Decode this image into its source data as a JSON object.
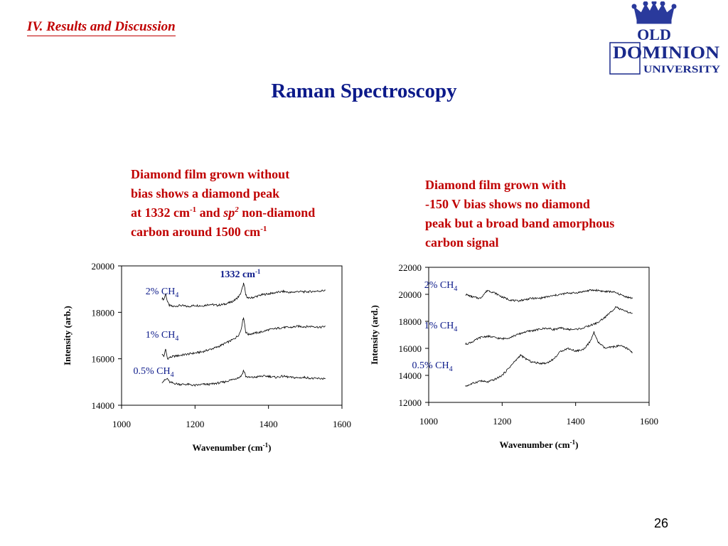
{
  "header": {
    "section": "IV. Results and Discussion",
    "title": "Raman Spectroscopy",
    "logo": {
      "line1": "OLD",
      "line2": "DOMINION",
      "line3": "UNIVERSITY",
      "color": "#1a2a8c"
    },
    "page_number": "26"
  },
  "left": {
    "caption": {
      "line1": "Diamond film grown without",
      "line2": "bias shows a diamond peak",
      "line3_a": "at 1332 cm",
      "line3_sup": "-1",
      "line3_b": " and ",
      "line3_i": "sp",
      "line3_isup": "2",
      "line3_c": " non-diamond",
      "line4": "carbon around 1500 cm",
      "line4_sup": "-1"
    }
  },
  "right": {
    "caption": {
      "line1": "Diamond film grown with",
      "line2": "-150 V bias shows no diamond",
      "line3": "peak but a broad band amorphous",
      "line4": "carbon signal"
    }
  },
  "chart_data": [
    {
      "type": "line",
      "xlabel": "Wavenumber (cm",
      "xlabel_sup": "-1",
      "xlabel_end": ")",
      "ylabel": "Intensity (arb.)",
      "xlim": [
        1000,
        1600
      ],
      "ylim": [
        14000,
        20000
      ],
      "xticks": [
        "1000",
        "1200",
        "1400",
        "1600"
      ],
      "yticks": [
        "14000",
        "16000",
        "18000",
        "20000"
      ],
      "annotation": {
        "text": "1332 cm",
        "sup": "-1"
      },
      "series": [
        {
          "name": "2% CH",
          "sub": "4",
          "x": [
            1110,
            1115,
            1120,
            1125,
            1130,
            1140,
            1160,
            1180,
            1200,
            1220,
            1240,
            1260,
            1280,
            1300,
            1310,
            1320,
            1325,
            1330,
            1332,
            1335,
            1338,
            1345,
            1360,
            1380,
            1400,
            1420,
            1440,
            1460,
            1480,
            1500,
            1520,
            1540,
            1555
          ],
          "y": [
            18600,
            18550,
            18800,
            18450,
            18300,
            18250,
            18300,
            18250,
            18300,
            18280,
            18350,
            18300,
            18350,
            18450,
            18550,
            18700,
            18850,
            19100,
            19250,
            19050,
            18750,
            18600,
            18650,
            18750,
            18800,
            18850,
            18900,
            18850,
            18900,
            18880,
            18900,
            18920,
            18950
          ]
        },
        {
          "name": "1% CH",
          "sub": "4",
          "x": [
            1110,
            1115,
            1120,
            1125,
            1130,
            1140,
            1160,
            1180,
            1200,
            1220,
            1240,
            1260,
            1280,
            1300,
            1310,
            1320,
            1325,
            1330,
            1332,
            1335,
            1338,
            1345,
            1360,
            1380,
            1400,
            1420,
            1440,
            1460,
            1480,
            1500,
            1520,
            1540,
            1555
          ],
          "y": [
            16200,
            16100,
            16400,
            16000,
            16050,
            16100,
            16150,
            16200,
            16250,
            16300,
            16400,
            16500,
            16650,
            16800,
            16900,
            17050,
            17250,
            17650,
            17800,
            17500,
            17150,
            17050,
            17100,
            17150,
            17250,
            17300,
            17350,
            17350,
            17400,
            17380,
            17400,
            17350,
            17400
          ]
        },
        {
          "name": "0.5% CH",
          "sub": "4",
          "x": [
            1110,
            1115,
            1120,
            1125,
            1130,
            1140,
            1160,
            1180,
            1200,
            1220,
            1240,
            1260,
            1280,
            1300,
            1310,
            1320,
            1325,
            1330,
            1332,
            1335,
            1338,
            1345,
            1360,
            1380,
            1400,
            1420,
            1440,
            1460,
            1480,
            1500,
            1520,
            1540,
            1555
          ],
          "y": [
            15000,
            15050,
            15100,
            15150,
            15000,
            14950,
            14900,
            14900,
            14850,
            14900,
            14900,
            14950,
            15000,
            15100,
            15150,
            15200,
            15250,
            15400,
            15500,
            15400,
            15250,
            15200,
            15200,
            15250,
            15250,
            15200,
            15250,
            15200,
            15180,
            15200,
            15150,
            15150,
            15150
          ]
        }
      ]
    },
    {
      "type": "line",
      "xlabel": "Wavenumber (cm",
      "xlabel_sup": "-1",
      "xlabel_end": ")",
      "ylabel": "Intensity (ard.)",
      "xlim": [
        1000,
        1600
      ],
      "ylim": [
        12000,
        22000
      ],
      "xticks": [
        "1000",
        "1200",
        "1400",
        "1600"
      ],
      "yticks": [
        "12000",
        "14000",
        "16000",
        "18000",
        "20000",
        "22000"
      ],
      "series": [
        {
          "name": "2% CH",
          "sub": "4",
          "x": [
            1100,
            1120,
            1140,
            1160,
            1180,
            1200,
            1220,
            1240,
            1260,
            1280,
            1300,
            1320,
            1340,
            1360,
            1380,
            1400,
            1420,
            1440,
            1460,
            1480,
            1500,
            1520,
            1540,
            1555
          ],
          "y": [
            20000,
            19800,
            19700,
            20300,
            20100,
            19800,
            19600,
            19500,
            19600,
            19700,
            19700,
            19800,
            19900,
            20000,
            20100,
            20100,
            20200,
            20300,
            20300,
            20200,
            20200,
            20000,
            19800,
            19700
          ]
        },
        {
          "name": "1% CH",
          "sub": "4",
          "x": [
            1100,
            1120,
            1140,
            1160,
            1180,
            1200,
            1220,
            1240,
            1260,
            1280,
            1300,
            1320,
            1340,
            1360,
            1380,
            1400,
            1420,
            1440,
            1460,
            1480,
            1500,
            1510,
            1520,
            1540,
            1555
          ],
          "y": [
            16300,
            16500,
            16800,
            16900,
            16800,
            16700,
            16800,
            17000,
            17200,
            17300,
            17400,
            17500,
            17400,
            17500,
            17400,
            17400,
            17500,
            17700,
            17900,
            18300,
            18800,
            19100,
            18900,
            18700,
            18600
          ]
        },
        {
          "name": "0.5% CH",
          "sub": "4",
          "x": [
            1100,
            1120,
            1140,
            1160,
            1180,
            1200,
            1220,
            1240,
            1250,
            1260,
            1280,
            1300,
            1320,
            1340,
            1360,
            1380,
            1400,
            1420,
            1440,
            1450,
            1460,
            1480,
            1500,
            1520,
            1540,
            1555
          ],
          "y": [
            13200,
            13400,
            13600,
            13500,
            13700,
            14000,
            14600,
            15200,
            15500,
            15300,
            15000,
            14900,
            14900,
            15200,
            15800,
            16000,
            15800,
            15900,
            16500,
            17200,
            16500,
            16000,
            16100,
            16200,
            16000,
            15700
          ]
        }
      ]
    }
  ]
}
